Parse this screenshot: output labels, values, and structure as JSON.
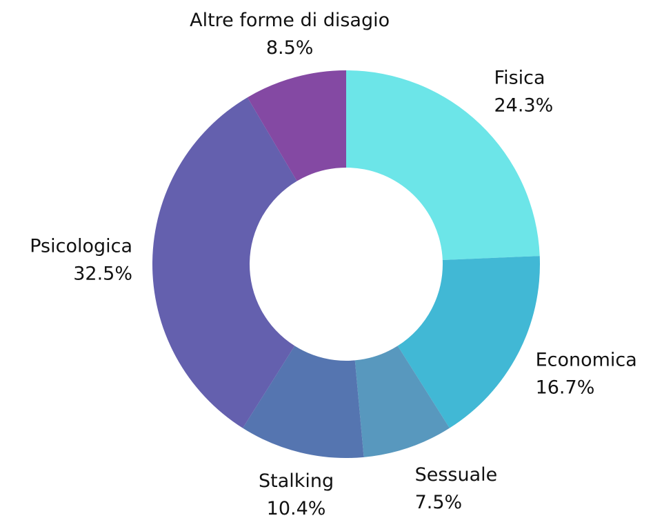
{
  "chart_data": {
    "type": "donut",
    "categories": [
      "Fisica",
      "Economica",
      "Sessuale",
      "Stalking",
      "Psicologica",
      "Altre forme di disagio"
    ],
    "values": [
      24.3,
      16.7,
      7.5,
      10.4,
      32.5,
      8.5
    ],
    "value_labels": [
      "24.3%",
      "16.7%",
      "7.5%",
      "10.4%",
      "32.5%",
      "8.5%"
    ],
    "colors": [
      "#6ce5e8",
      "#41b8d5",
      "#5898be",
      "#5575b0",
      "#6460ae",
      "#8449a3"
    ]
  }
}
